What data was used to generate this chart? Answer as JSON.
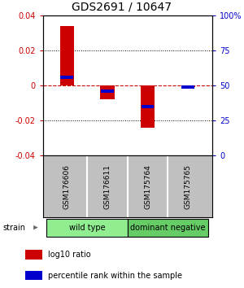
{
  "title": "GDS2691 / 10647",
  "samples": [
    "GSM176606",
    "GSM176611",
    "GSM175764",
    "GSM175765"
  ],
  "log10_ratio": [
    0.034,
    -0.008,
    -0.024,
    -0.001
  ],
  "percentile_rank": [
    56,
    46,
    35,
    49
  ],
  "groups": [
    {
      "name": "wild type",
      "samples": [
        0,
        1
      ],
      "color": "#90EE90"
    },
    {
      "name": "dominant negative",
      "samples": [
        2,
        3
      ],
      "color": "#66CC66"
    }
  ],
  "ylim": [
    -0.04,
    0.04
  ],
  "yticks_left": [
    -0.04,
    -0.02,
    0.0,
    0.02,
    0.04
  ],
  "yticks_right_pct": [
    0,
    25,
    50,
    75,
    100
  ],
  "bar_width": 0.35,
  "red_color": "#CC0000",
  "blue_color": "#0000CC",
  "zero_line_color": "#CC0000",
  "grid_color": "#000000",
  "bg_color": "#ffffff",
  "sample_box_color": "#c0c0c0",
  "label_log10": "log10 ratio",
  "label_pct": "percentile rank within the sample",
  "strain_label": "strain"
}
